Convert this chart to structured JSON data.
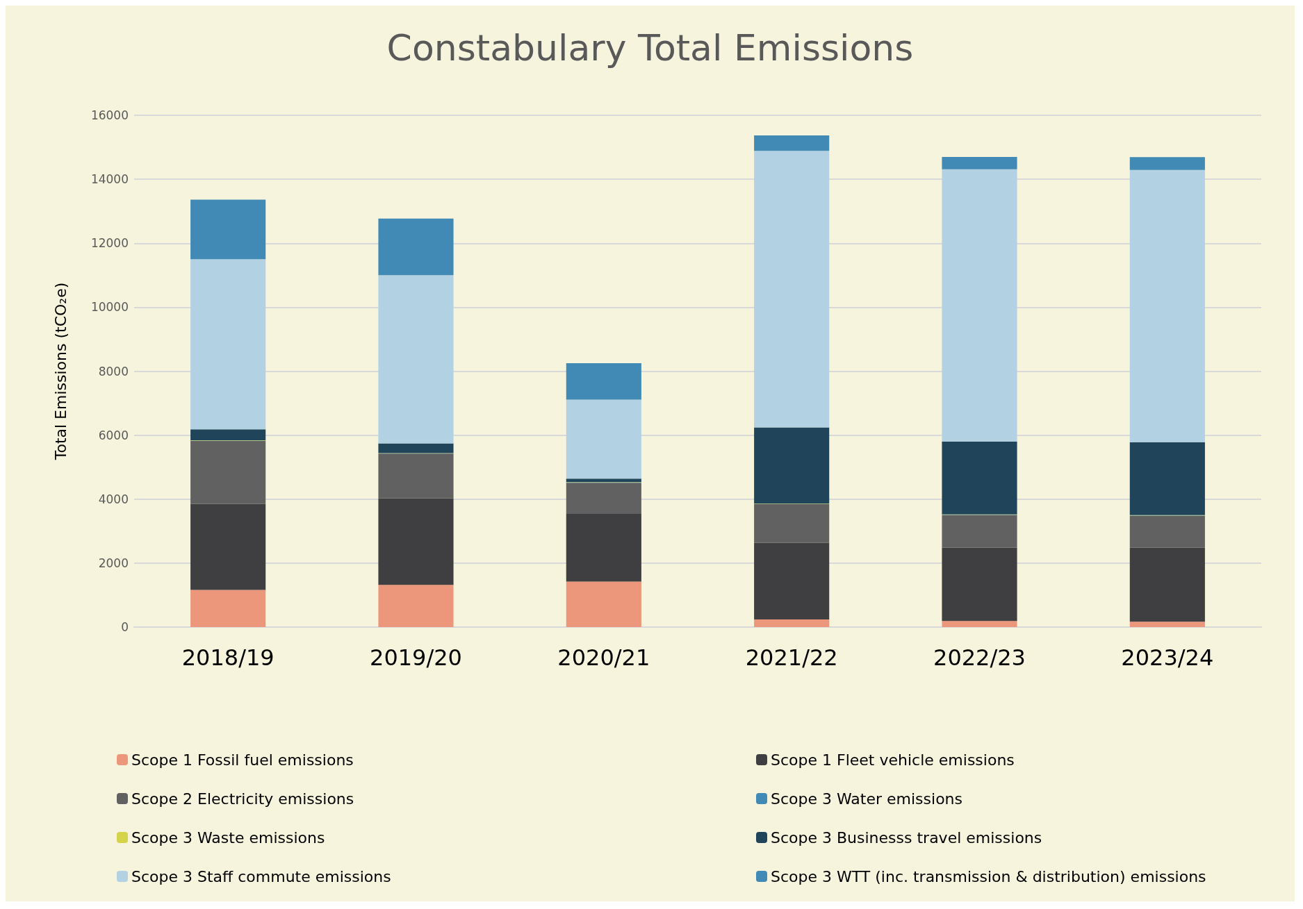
{
  "chart_data": {
    "type": "bar",
    "title": "Constabulary Total Emissions",
    "ylabel": "Total Emissions (tCO₂e)",
    "stacked": true,
    "categories": [
      "2018/19",
      "2019/20",
      "2020/21",
      "2021/22",
      "2022/23",
      "2023/24"
    ],
    "series": [
      {
        "name": "Scope 1 Fossil fuel emissions",
        "color": "#ec977b",
        "values": [
          1160,
          1320,
          1420,
          240,
          190,
          170
        ]
      },
      {
        "name": "Scope 1 Fleet vehicle emissions",
        "color": "#3f3f41",
        "values": [
          2690,
          2700,
          2120,
          2390,
          2290,
          2310
        ]
      },
      {
        "name": "Scope 2 Electricity emissions",
        "color": "#616161",
        "values": [
          1970,
          1400,
          970,
          1210,
          1020,
          1000
        ]
      },
      {
        "name": "Scope 3 Water emissions",
        "color": "#418ab5",
        "values": [
          10,
          10,
          10,
          10,
          10,
          10
        ]
      },
      {
        "name": "Scope 3 Waste emissions",
        "color": "#d4d44a",
        "values": [
          10,
          10,
          10,
          10,
          10,
          10
        ]
      },
      {
        "name": "Scope 3 Businesss travel emissions",
        "color": "#20455a",
        "values": [
          340,
          300,
          110,
          2380,
          2280,
          2280
        ]
      },
      {
        "name": "Scope 3 Staff commute emissions",
        "color": "#b2d1e3",
        "values": [
          5320,
          5260,
          2470,
          8650,
          8510,
          8510
        ]
      },
      {
        "name": "Scope 3 WTT (inc. transmission & distribution) emissions",
        "color": "#418ab5",
        "values": [
          1860,
          1770,
          1140,
          480,
          390,
          400
        ]
      }
    ],
    "ylim": [
      0,
      16000
    ],
    "yticks": [
      0,
      2000,
      4000,
      6000,
      8000,
      10000,
      12000,
      14000,
      16000
    ],
    "grid": "y",
    "legend": "bottom"
  }
}
